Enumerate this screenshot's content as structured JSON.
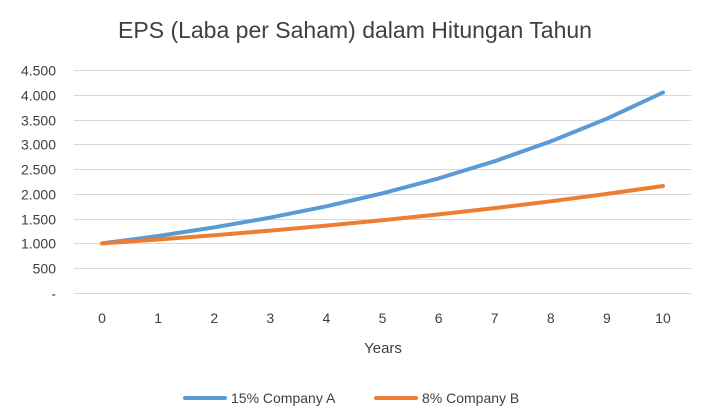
{
  "chart_data": {
    "type": "line",
    "title": "EPS (Laba per Saham) dalam Hitungan Tahun",
    "xlabel": "Years",
    "ylabel": "",
    "categories": [
      "0",
      "1",
      "2",
      "3",
      "4",
      "5",
      "6",
      "7",
      "8",
      "9",
      "10"
    ],
    "ylim": [
      0,
      4500
    ],
    "ytick_values": [
      0,
      500,
      1000,
      1500,
      2000,
      2500,
      3000,
      3500,
      4000,
      4500
    ],
    "ytick_labels": [
      "-",
      "500",
      "1.000",
      "1.500",
      "2.000",
      "2.500",
      "3.000",
      "3.500",
      "4.000",
      "4.500"
    ],
    "grid": true,
    "legend_position": "bottom",
    "series": [
      {
        "name": "15% Company A",
        "color": "#5B9BD5",
        "values": [
          1000,
          1150,
          1323,
          1521,
          1749,
          2011,
          2313,
          2660,
          3059,
          3518,
          4046
        ]
      },
      {
        "name": "8% Company B",
        "color": "#ED7D31",
        "values": [
          1000,
          1080,
          1166,
          1260,
          1360,
          1469,
          1587,
          1714,
          1851,
          1999,
          2159
        ]
      }
    ]
  }
}
